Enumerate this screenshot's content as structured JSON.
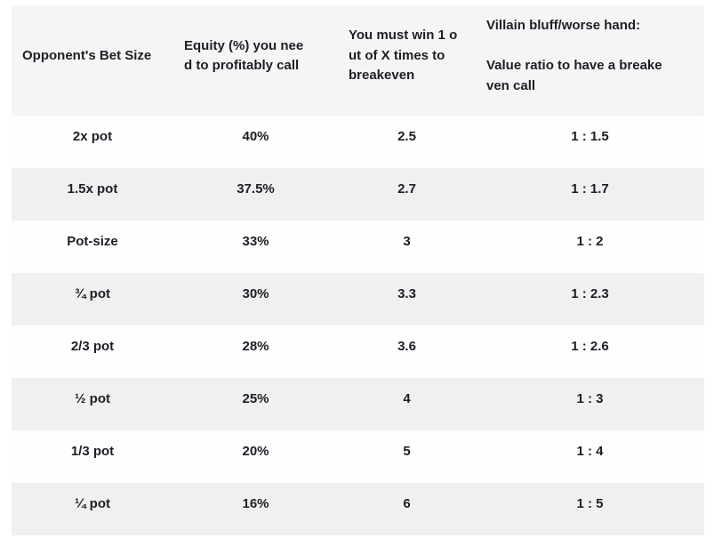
{
  "chart_data": {
    "type": "table",
    "columns": [
      "Opponent's Bet Size",
      "Equity (%) you need to profitably call",
      "You must win 1 out of X times to breakeven",
      "Villain bluff/worse hand: Value ratio to have a breakeven call"
    ],
    "headers_display": [
      "Opponent's Bet Size",
      "Equity (%) you nee\nd to profitably call",
      "You must win 1 o\nut of X times to\nbreakeven",
      "Villain bluff/worse hand:\n\nValue ratio to have a breake\nven call"
    ],
    "rows": [
      {
        "bet_size": "2x pot",
        "equity": "40%",
        "win_odds": "2.5",
        "ratio": "1 : 1.5"
      },
      {
        "bet_size": "1.5x pot",
        "equity": "37.5%",
        "win_odds": "2.7",
        "ratio": "1 : 1.7"
      },
      {
        "bet_size": "Pot-size",
        "equity": "33%",
        "win_odds": "3",
        "ratio": "1 : 2"
      },
      {
        "bet_size": "¾ pot",
        "equity": "30%",
        "win_odds": "3.3",
        "ratio": "1 : 2.3"
      },
      {
        "bet_size": "2/3 pot",
        "equity": "28%",
        "win_odds": "3.6",
        "ratio": "1 : 2.6"
      },
      {
        "bet_size": "½ pot",
        "equity": "25%",
        "win_odds": "4",
        "ratio": "1 : 3"
      },
      {
        "bet_size": "1/3 pot",
        "equity": "20%",
        "win_odds": "5",
        "ratio": "1 : 4"
      },
      {
        "bet_size": "¼ pot",
        "equity": "16%",
        "win_odds": "6",
        "ratio": "1 : 5"
      }
    ]
  },
  "colors": {
    "page_background": "#ffffff",
    "header_background": "#f5f5f5",
    "row_background": "#fefefe",
    "row_alt_background": "#f0f0f0",
    "text": "#1e1e28"
  }
}
